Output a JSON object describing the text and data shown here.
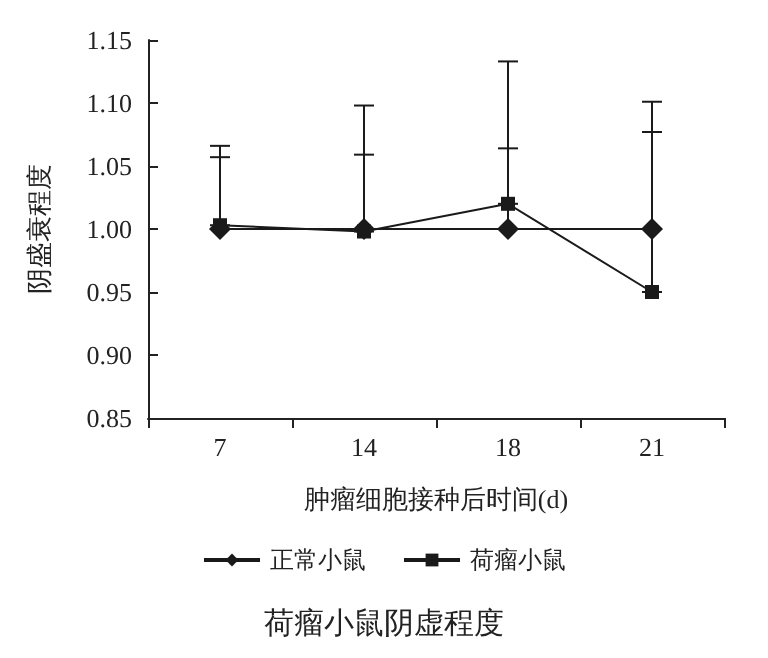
{
  "chart_data": {
    "type": "line",
    "title": "荷瘤小鼠阴虚程度",
    "xlabel": "肿瘤细胞接种后时间(d)",
    "ylabel": "阴盛衰程度",
    "categories": [
      "7",
      "14",
      "18",
      "21"
    ],
    "series": [
      {
        "name": "正常小鼠",
        "color": "#1a1a1a",
        "marker": "diamond",
        "values": [
          1.0,
          1.0,
          1.0,
          1.0
        ],
        "errors": [
          [
            1.0,
            1.057
          ],
          [
            1.0,
            1.059
          ],
          [
            1.0,
            1.064
          ],
          [
            1.0,
            1.077
          ]
        ]
      },
      {
        "name": "荷瘤小鼠",
        "color": "#1a1a1a",
        "marker": "square",
        "values": [
          1.003,
          0.998,
          1.02,
          0.95
        ],
        "errors": [
          [
            1.003,
            1.066
          ],
          [
            0.998,
            1.098
          ],
          [
            1.02,
            1.133
          ],
          [
            0.95,
            1.101
          ]
        ]
      }
    ],
    "ylim": [
      0.85,
      1.15
    ],
    "yticks": [
      0.85,
      {
        "value": 0.9,
        "label": "0.90"
      },
      0.95,
      {
        "value": 1.0,
        "label": "1.00"
      },
      1.05,
      {
        "value": 1.1,
        "label": "1.10"
      },
      1.15
    ],
    "grid": false,
    "legend": "bottom"
  }
}
